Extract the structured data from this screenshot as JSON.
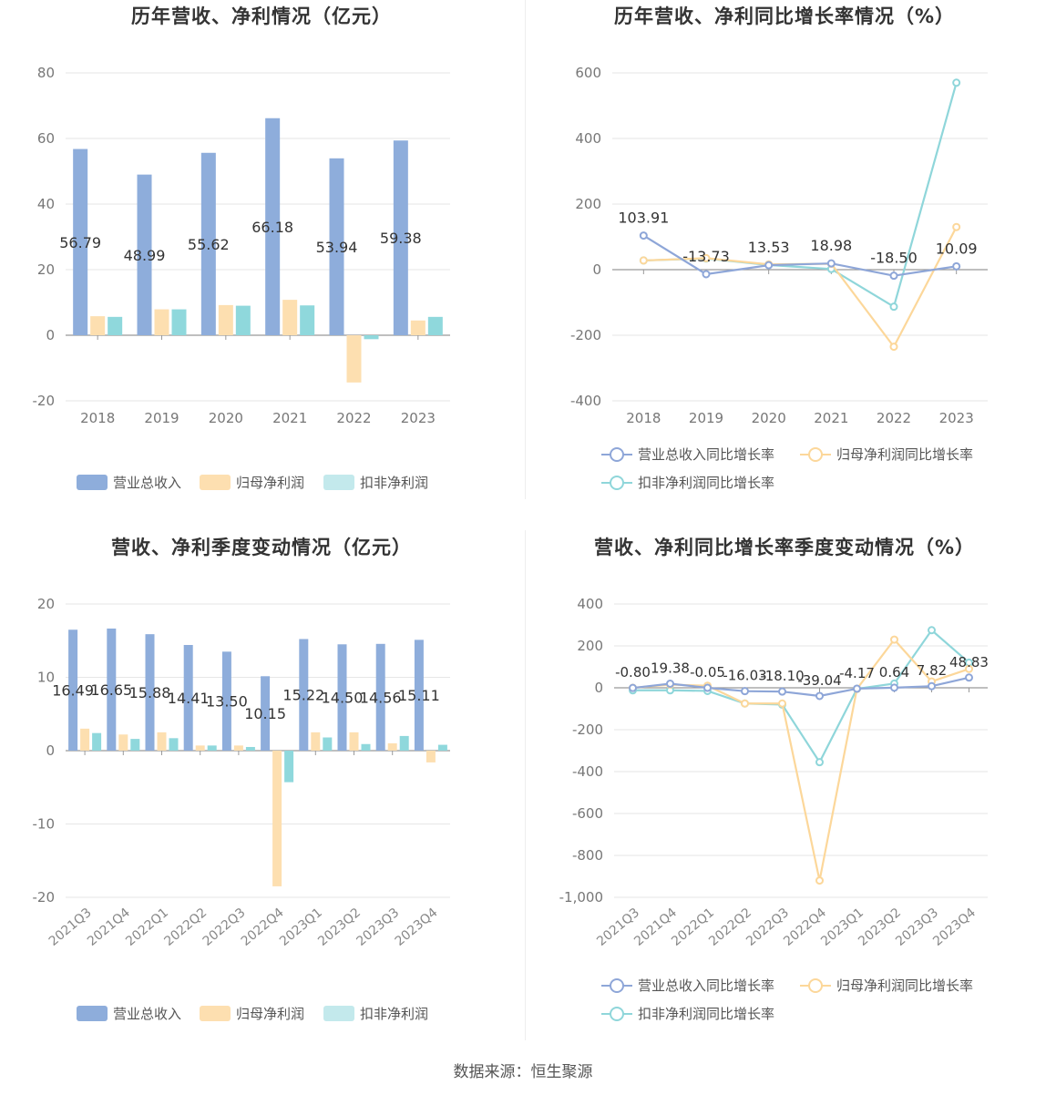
{
  "colors": {
    "revenue": "#8eaddb",
    "net_profit": "#fddfb0",
    "deducted_profit": "#8fd8dc",
    "revenue_line": "#8ea6d8",
    "net_profit_line": "#fcd79a",
    "deducted_profit_line": "#8fd6da"
  },
  "source": "数据来源：恒生聚源",
  "legend": {
    "bar": [
      "营业总收入",
      "归母净利润",
      "扣非净利润"
    ],
    "line": [
      "营业总收入同比增长率",
      "归母净利润同比增长率",
      "扣非净利润同比增长率"
    ]
  },
  "chart_data": [
    {
      "type": "bar",
      "title": "历年营收、净利情况（亿元）",
      "categories": [
        "2018",
        "2019",
        "2020",
        "2021",
        "2022",
        "2023"
      ],
      "series": [
        {
          "name": "营业总收入",
          "values": [
            56.79,
            48.99,
            55.62,
            66.18,
            53.94,
            59.38
          ]
        },
        {
          "name": "归母净利润",
          "values": [
            5.8,
            7.9,
            9.2,
            10.8,
            -14.4,
            4.5
          ]
        },
        {
          "name": "扣非净利润",
          "values": [
            5.6,
            7.9,
            9.0,
            9.1,
            -1.2,
            5.6
          ]
        }
      ],
      "data_labels": [
        "56.79",
        "48.99",
        "55.62",
        "66.18",
        "53.94",
        "59.38"
      ],
      "yticks": [
        "80",
        "60",
        "40",
        "20",
        "0",
        "-20"
      ],
      "ylim": [
        -20,
        80
      ],
      "legend_position": "bottom"
    },
    {
      "type": "line",
      "title": "历年营收、净利同比增长率情况（%）",
      "categories": [
        "2018",
        "2019",
        "2020",
        "2021",
        "2022",
        "2023"
      ],
      "series": [
        {
          "name": "营业总收入同比增长率",
          "values": [
            103.91,
            -13.73,
            13.53,
            18.98,
            -18.5,
            10.09
          ]
        },
        {
          "name": "归母净利润同比增长率",
          "values": [
            28,
            35,
            16,
            18,
            -235,
            130
          ]
        },
        {
          "name": "扣非净利润同比增长率",
          "values": [
            28,
            34,
            14,
            2,
            -113,
            570
          ]
        }
      ],
      "data_labels": [
        "103.91",
        "-13.73",
        "13.53",
        "18.98",
        "-18.50",
        "10.09"
      ],
      "yticks": [
        "600",
        "400",
        "200",
        "0",
        "-200",
        "-400"
      ],
      "ylim": [
        -400,
        600
      ],
      "legend_position": "bottom"
    },
    {
      "type": "bar",
      "title": "营收、净利季度变动情况（亿元）",
      "categories": [
        "2021Q3",
        "2021Q4",
        "2022Q1",
        "2022Q2",
        "2022Q3",
        "2022Q4",
        "2023Q1",
        "2023Q2",
        "2023Q3",
        "2023Q4"
      ],
      "series": [
        {
          "name": "营业总收入",
          "values": [
            16.49,
            16.65,
            15.88,
            14.41,
            13.5,
            10.15,
            15.22,
            14.5,
            14.56,
            15.11
          ]
        },
        {
          "name": "归母净利润",
          "values": [
            3.0,
            2.2,
            2.5,
            0.7,
            0.7,
            -18.5,
            2.5,
            2.5,
            1.0,
            -1.6
          ]
        },
        {
          "name": "扣非净利润",
          "values": [
            2.4,
            1.6,
            1.7,
            0.7,
            0.5,
            -4.3,
            1.8,
            0.9,
            2.0,
            0.8
          ]
        }
      ],
      "data_labels": [
        "16.49",
        "16.65",
        "15.88",
        "14.41",
        "13.50",
        "10.15",
        "15.22",
        "14.50",
        "14.56",
        "15.11"
      ],
      "yticks": [
        "20",
        "10",
        "0",
        "-10",
        "-20"
      ],
      "ylim": [
        -20,
        20
      ],
      "legend_position": "bottom"
    },
    {
      "type": "line",
      "title": "营收、净利同比增长率季度变动情况（%）",
      "categories": [
        "2021Q3",
        "2021Q4",
        "2022Q1",
        "2022Q2",
        "2022Q3",
        "2022Q4",
        "2023Q1",
        "2023Q2",
        "2023Q3",
        "2023Q4"
      ],
      "series": [
        {
          "name": "营业总收入同比增长率",
          "values": [
            -0.8,
            19.38,
            -0.05,
            -16.03,
            -18.1,
            -39.04,
            -4.17,
            0.64,
            7.82,
            48.83
          ]
        },
        {
          "name": "归母净利润同比增长率",
          "values": [
            0,
            15,
            10,
            -75,
            -75,
            -920,
            -5,
            230,
            30,
            90
          ]
        },
        {
          "name": "扣非净利润同比增长率",
          "values": [
            -12,
            -12,
            -15,
            -75,
            -80,
            -355,
            -5,
            20,
            275,
            120
          ]
        }
      ],
      "data_labels": [
        "-0.80",
        "19.38",
        "-0.05",
        "-16.03",
        "-18.10",
        "-39.04",
        "-4.17",
        "0.64",
        "7.82",
        "48.83"
      ],
      "yticks": [
        "400",
        "200",
        "0",
        "-200",
        "-400",
        "-600",
        "-800",
        "-1,000"
      ],
      "ylim": [
        -1000,
        400
      ],
      "legend_position": "bottom"
    }
  ]
}
